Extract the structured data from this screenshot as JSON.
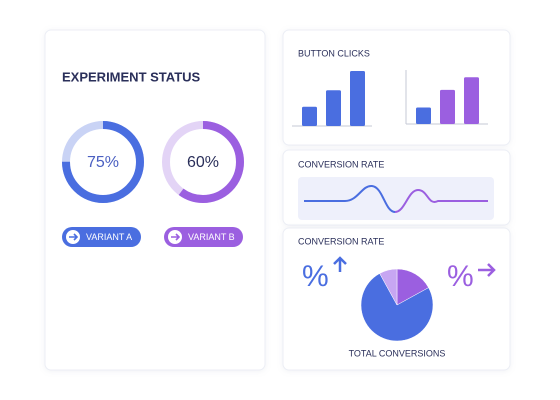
{
  "experiment_status": {
    "title": "EXPERIMENT STATUS",
    "donuts": [
      {
        "value": 75,
        "label": "75%",
        "color": "#4a6ee0",
        "track": "#c9d3f5"
      },
      {
        "value": 60,
        "label": "60%",
        "color": "#9b5fe0",
        "track": "#e3d4f6"
      }
    ],
    "buttons": [
      {
        "label": "VARIANT A",
        "color": "#4a6ee0"
      },
      {
        "label": "VARIANT B",
        "color": "#9b5fe0"
      }
    ]
  },
  "button_clicks": {
    "title": "BUTTON CLICKS",
    "groups": [
      {
        "values": [
          35,
          65,
          100
        ],
        "colors": [
          "#4a6ee0",
          "#4a6ee0",
          "#4a6ee0"
        ]
      },
      {
        "values": [
          30,
          62,
          85
        ],
        "colors": [
          "#4a6ee0",
          "#9b5fe0",
          "#9b5fe0"
        ]
      }
    ]
  },
  "conversion_trend": {
    "title": "CONVERSION RATE"
  },
  "conversion_pie": {
    "title": "CONVERSION RATE",
    "left_icon": "%",
    "right_icon": "%",
    "values": [
      17,
      75,
      8
    ],
    "colors": [
      "#9b5fe0",
      "#4a6ee0",
      "#c7a6f2"
    ],
    "caption": "TOTAL CONVERSIONS"
  }
}
